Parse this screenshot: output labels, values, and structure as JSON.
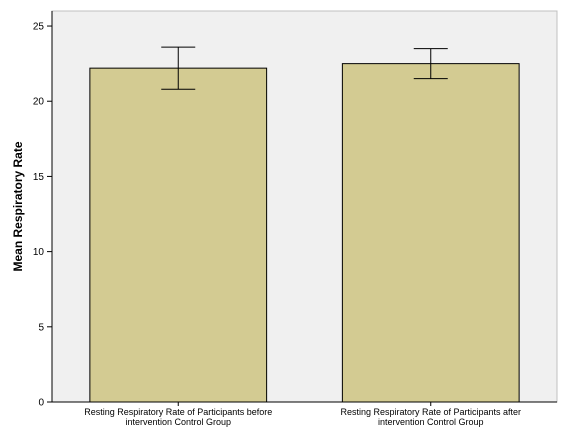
{
  "chart_data": {
    "type": "bar",
    "title": "",
    "xlabel": "",
    "ylabel": "Mean Respiratory Rate",
    "ylim": [
      0,
      26
    ],
    "yticks": [
      0,
      5,
      10,
      15,
      20,
      25
    ],
    "grid": false,
    "legend": "none",
    "categories": [
      [
        "Resting Respiratory Rate of Participants before",
        "intervention Control Group"
      ],
      [
        "Resting Respiratory Rate of Participants after",
        "intervention Control Group"
      ]
    ],
    "values": [
      22.2,
      22.5
    ],
    "error_bars": [
      {
        "low": 20.8,
        "high": 23.6
      },
      {
        "low": 21.5,
        "high": 23.5
      }
    ],
    "colors": {
      "bar_fill": "#d3cb92",
      "bar_stroke": "#000000",
      "plot_background": "#f0f0f0",
      "frame": "#c0c0c0"
    }
  }
}
